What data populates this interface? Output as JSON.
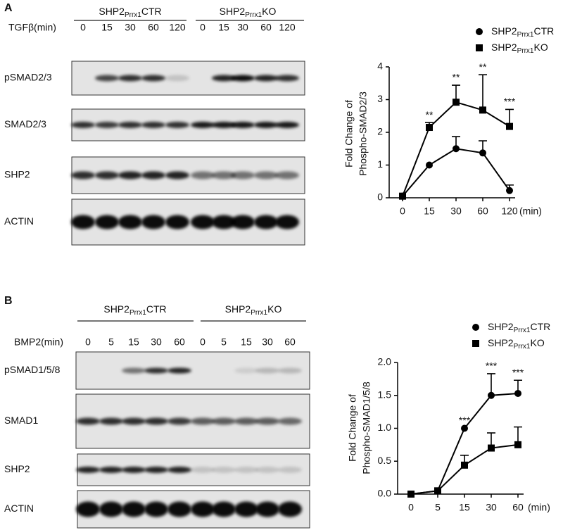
{
  "figure": {
    "panels": [
      {
        "label": "A",
        "groups": [
          "SHP2Prrx1CTR",
          "SHP2Prrx1KO"
        ],
        "treatment": "TGFβ(min)",
        "times": [
          "0",
          "15",
          "30",
          "60",
          "120",
          "0",
          "15",
          "30",
          "60",
          "120"
        ],
        "blots": [
          "pSMAD2/3",
          "SMAD2/3",
          "SHP2",
          "ACTIN"
        ]
      },
      {
        "label": "B",
        "groups": [
          "SHP2Prrx1CTR",
          "SHP2Prrx1KO"
        ],
        "treatment": "BMP2(min)",
        "times": [
          "0",
          "5",
          "15",
          "30",
          "60",
          "0",
          "5",
          "15",
          "30",
          "60"
        ],
        "blots": [
          "pSMAD1/5/8",
          "SMAD1",
          "SHP2",
          "ACTIN"
        ]
      }
    ]
  },
  "chart_data": [
    {
      "type": "line",
      "ylabel": [
        "Fold Change of",
        "Phospho-SMAD2/3"
      ],
      "xlabel": "(min)",
      "categories": [
        "0",
        "15",
        "30",
        "60",
        "120"
      ],
      "series": [
        {
          "name": "SHP2Prrx1CTR",
          "color": "#000000",
          "marker": "circle",
          "values": [
            0.05,
            1.0,
            1.5,
            1.37,
            0.22
          ],
          "errors": [
            0,
            0,
            0.37,
            0.37,
            0.17
          ]
        },
        {
          "name": "SHP2Prrx1KO",
          "color": "#000000",
          "marker": "square",
          "values": [
            0.05,
            2.15,
            2.92,
            2.68,
            2.18
          ],
          "errors": [
            0,
            0.15,
            0.52,
            1.08,
            0.52
          ]
        }
      ],
      "annotations": [
        {
          "text": "**",
          "x": "15"
        },
        {
          "text": "**",
          "x": "30"
        },
        {
          "text": "**",
          "x": "60"
        },
        {
          "text": "***",
          "x": "120"
        }
      ],
      "ylim": [
        0,
        4
      ],
      "yticks": [
        0,
        1,
        2,
        3,
        4
      ],
      "legend": "top-right"
    },
    {
      "type": "line",
      "ylabel": [
        "Fold Change of",
        "Phospho-SMAD1/5/8"
      ],
      "xlabel": "(min)",
      "categories": [
        "0",
        "5",
        "15",
        "30",
        "60"
      ],
      "series": [
        {
          "name": "SHP2Prrx1CTR",
          "color": "#000000",
          "marker": "circle",
          "values": [
            0,
            0.05,
            1.0,
            1.5,
            1.53
          ],
          "errors": [
            0,
            0,
            0,
            0.33,
            0.2
          ]
        },
        {
          "name": "SHP2Prrx1KO",
          "color": "#000000",
          "marker": "square",
          "values": [
            0,
            0.05,
            0.44,
            0.7,
            0.75
          ],
          "errors": [
            0,
            0,
            0.15,
            0.23,
            0.27
          ]
        }
      ],
      "annotations": [
        {
          "text": "***",
          "x": "15"
        },
        {
          "text": "***",
          "x": "30"
        },
        {
          "text": "***",
          "x": "60"
        }
      ],
      "ylim": [
        0,
        2
      ],
      "yticks": [
        {
          "value": 0,
          "label": "0.0"
        },
        {
          "value": 0.5,
          "label": "0.5"
        },
        {
          "value": 1,
          "label": "1.0"
        },
        {
          "value": 1.5,
          "label": "1.5"
        },
        {
          "value": 2,
          "label": "2.0"
        }
      ],
      "legend": "top-right"
    }
  ]
}
